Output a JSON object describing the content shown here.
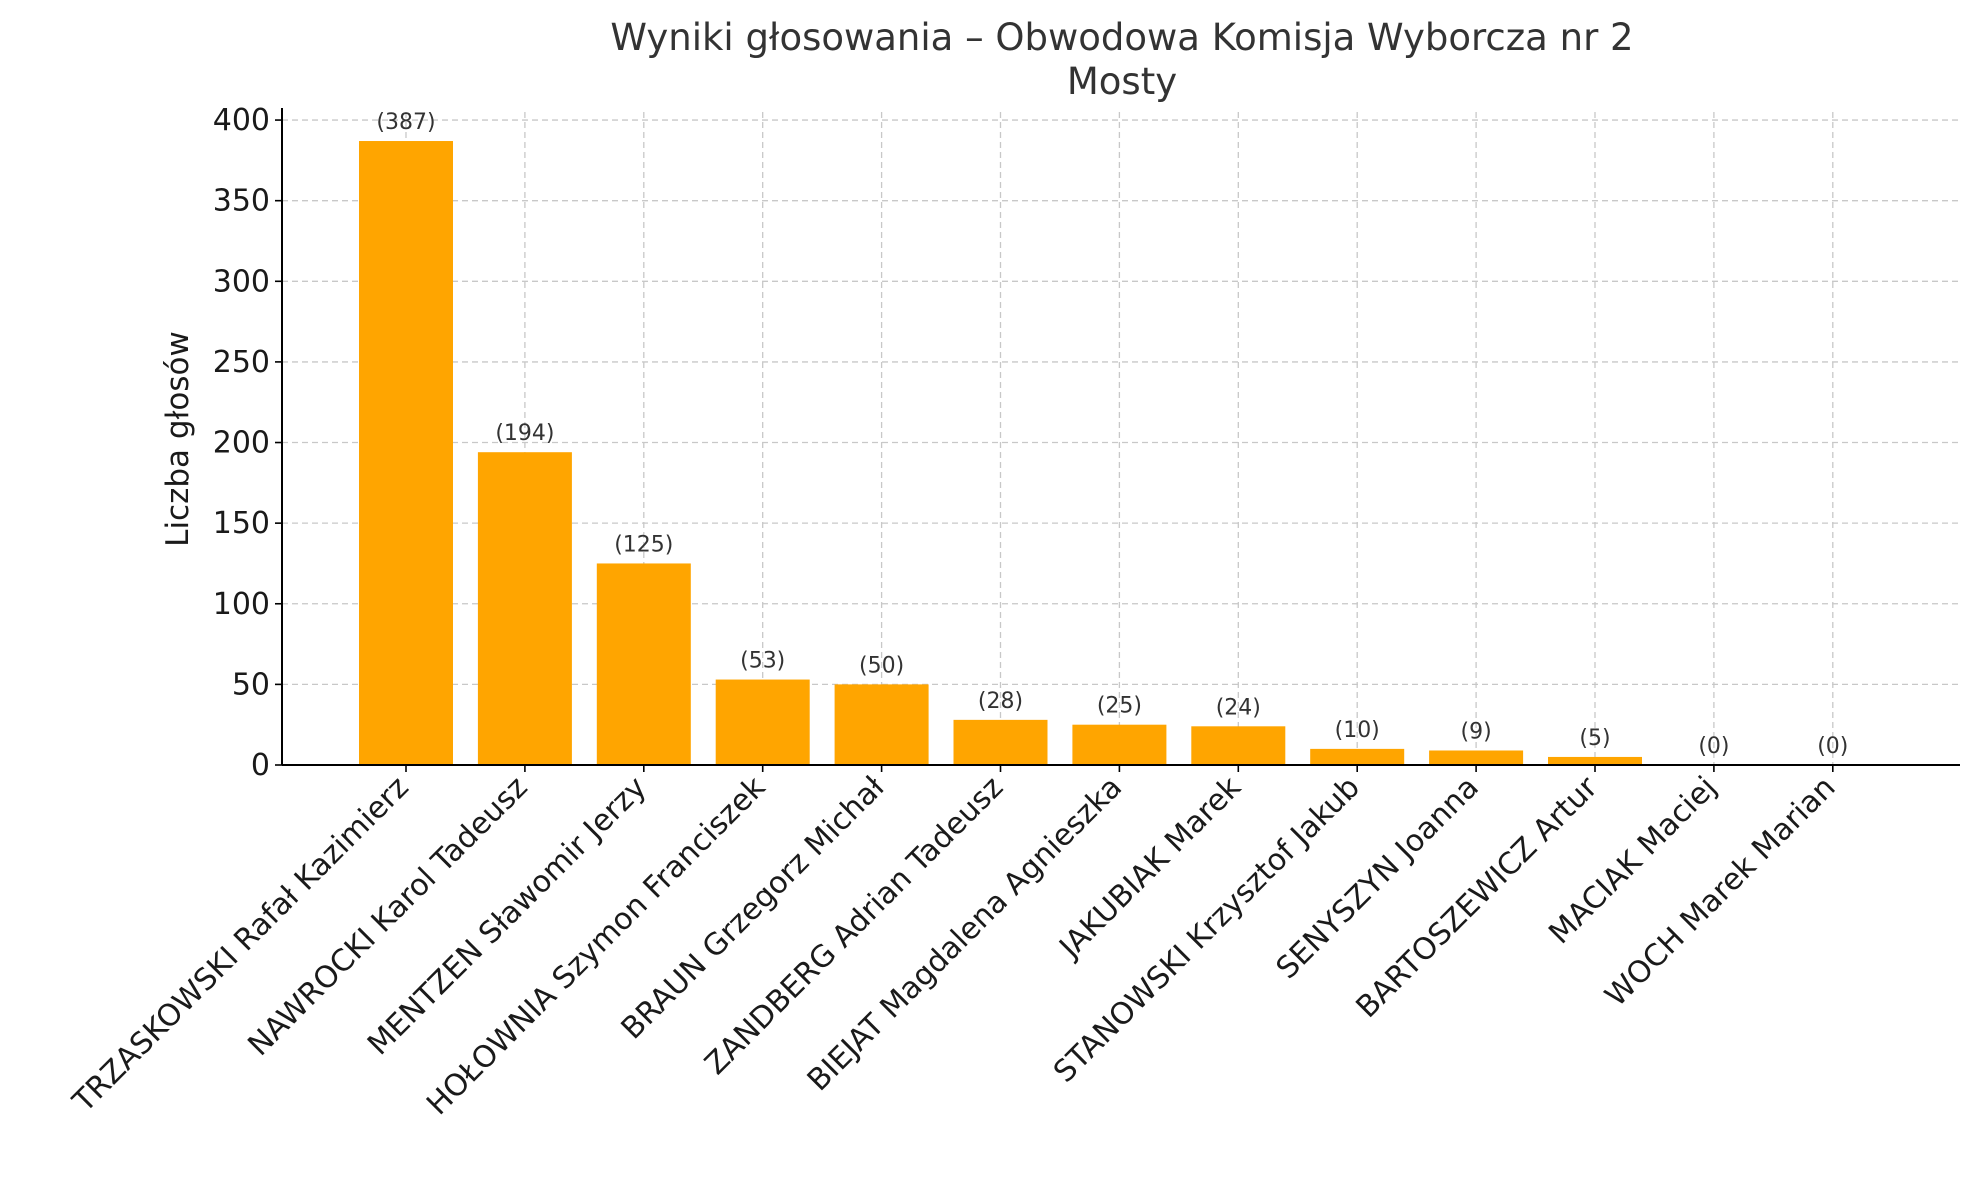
{
  "chart_data": {
    "type": "bar",
    "title": "Wyniki głosowania – Obwodowa Komisja Wyborcza nr 2",
    "subtitle": "Mosty",
    "xlabel": "",
    "ylabel": "Liczba głosów",
    "ylim": [
      0,
      405
    ],
    "yticks": [
      0,
      50,
      100,
      150,
      200,
      250,
      300,
      350,
      400
    ],
    "grid": true,
    "bar_color": "#ffa500",
    "categories": [
      "TRZASKOWSKI Rafał Kazimierz",
      "NAWROCKI Karol Tadeusz",
      "MENTZEN Sławomir Jerzy",
      "HOŁOWNIA Szymon Franciszek",
      "BRAUN Grzegorz Michał",
      "ZANDBERG Adrian Tadeusz",
      "BIEJAT Magdalena Agnieszka",
      "JAKUBIAK Marek",
      "STANOWSKI Krzysztof Jakub",
      "SENYSZYN Joanna",
      "BARTOSZEWICZ Artur",
      "MACIAK Maciej",
      "WOCH Marek Marian"
    ],
    "values": [
      387,
      194,
      125,
      53,
      50,
      28,
      25,
      24,
      10,
      9,
      5,
      0,
      0
    ],
    "data_labels": [
      "(387)",
      "(194)",
      "(125)",
      "(53)",
      "(50)",
      "(28)",
      "(25)",
      "(24)",
      "(10)",
      "(9)",
      "(5)",
      "(0)",
      "(0)"
    ]
  }
}
